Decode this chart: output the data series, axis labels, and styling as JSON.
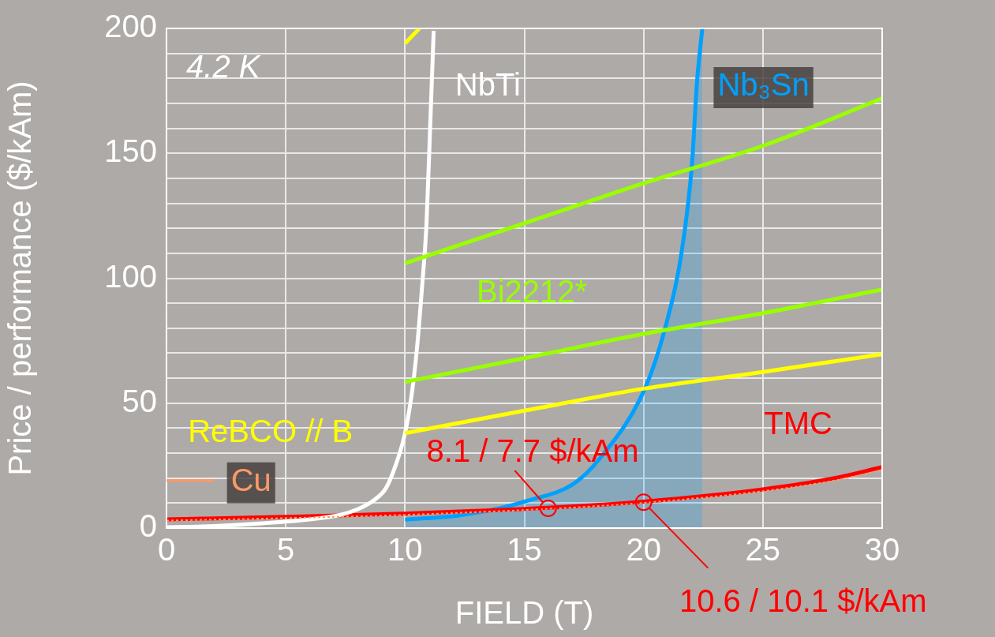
{
  "chart_data": {
    "type": "line",
    "xlabel": "FIELD (T)",
    "ylabel": "Price / performance ($/kAm)",
    "xlim": [
      0,
      30
    ],
    "xticks": [
      0,
      5,
      10,
      15,
      20,
      25,
      30
    ],
    "ylim": [
      0,
      200
    ],
    "yticks": [
      0,
      {
        "value": 10,
        "label": null
      },
      {
        "value": 20,
        "label": null
      },
      {
        "value": 30,
        "label": null
      },
      {
        "value": 40,
        "label": null
      },
      50,
      {
        "value": 60,
        "label": null
      },
      {
        "value": 70,
        "label": null
      },
      {
        "value": 80,
        "label": null
      },
      {
        "value": 90,
        "label": null
      },
      100,
      {
        "value": 110,
        "label": null
      },
      {
        "value": 120,
        "label": null
      },
      {
        "value": 130,
        "label": null
      },
      {
        "value": 140,
        "label": null
      },
      150,
      {
        "value": 160,
        "label": null
      },
      {
        "value": 170,
        "label": null
      },
      {
        "value": 180,
        "label": null
      },
      {
        "value": 190,
        "label": null
      },
      200
    ],
    "grid": true,
    "marker": "none",
    "series": [
      {
        "name": "TMC",
        "type": "line",
        "color": "#ff0000",
        "x": [
          0,
          5,
          10,
          16,
          20,
          25,
          28,
          30
        ],
        "values": [
          3.5,
          4.5,
          5.8,
          8.1,
          10.6,
          15.5,
          20,
          24.4
        ]
      },
      {
        "name": "Cu",
        "type": "line",
        "color": "#ff9966",
        "line_style": "dotted",
        "x": [
          0,
          5,
          10,
          16,
          20,
          25,
          28,
          30
        ],
        "values": [
          3.0,
          4.0,
          5.3,
          7.7,
          10.1,
          14.8,
          19,
          23.1
        ]
      },
      {
        "name": "Nb₃Sn",
        "type": "area",
        "color": "#00a0ff",
        "x": [
          10,
          12.2,
          14,
          15.15,
          17.03,
          18.16,
          20.05,
          20.9,
          21.57,
          22.03,
          22.23,
          22.46
        ],
        "values": [
          3.4,
          5,
          8,
          11,
          17.5,
          27.8,
          55.8,
          80,
          109,
          146,
          177.5,
          200
        ]
      },
      {
        "name": "NbTi",
        "type": "line",
        "color": "#ffffff",
        "x": [
          0,
          2,
          4,
          6,
          7.3,
          8,
          8.67,
          9.2,
          9.6,
          10,
          10.3,
          10.5,
          10.7,
          10.9,
          11.05,
          11.2
        ],
        "values": [
          0.3,
          0.8,
          1.9,
          3.5,
          5.3,
          7.5,
          11,
          16,
          25,
          38,
          55,
          72,
          95,
          122,
          160,
          199
        ]
      },
      {
        "name": "Bi2212*",
        "type": "line",
        "color": "#99ff00",
        "x": [
          10,
          15,
          20,
          25,
          30
        ],
        "values": [
          58.5,
          68,
          77.7,
          86,
          95.5
        ]
      },
      {
        "type": "line",
        "color": "#99ff00",
        "x": [
          10,
          15,
          20,
          25,
          30
        ],
        "values": [
          106,
          122,
          138,
          153,
          172
        ]
      },
      {
        "name": "ReBCO // B",
        "type": "line",
        "color": "#ffff00",
        "x": [
          10,
          15,
          20,
          25,
          30
        ],
        "values": [
          38,
          47,
          55.8,
          62.5,
          69.6
        ]
      },
      {
        "type": "line",
        "color": "#ffff00",
        "x": [
          10,
          10.6
        ],
        "values": [
          194,
          200
        ]
      }
    ],
    "annotations": [
      "4.2 K",
      {
        "text": "8.1 / 7.7 $/kAm",
        "x": 16,
        "y": 7.9
      },
      {
        "text": "10.6 / 10.1 $/kAm",
        "x": 20,
        "y": 10.35
      }
    ]
  }
}
